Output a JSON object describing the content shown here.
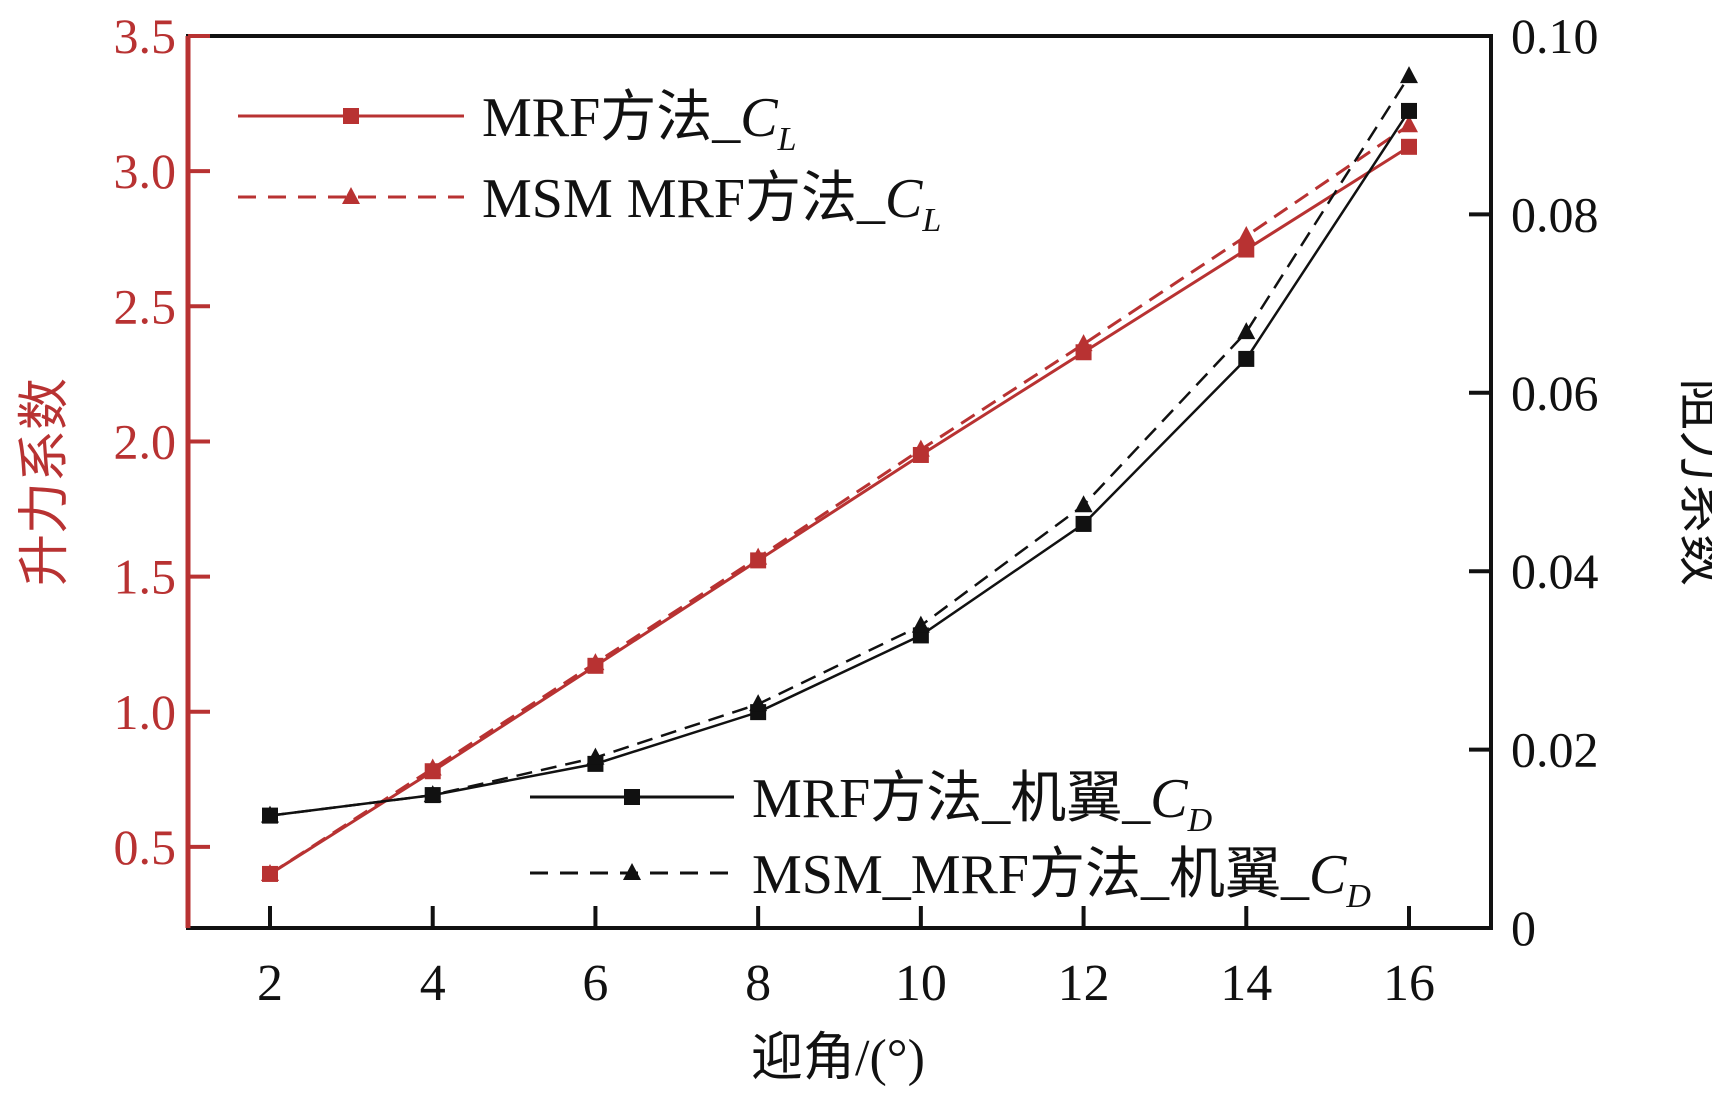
{
  "chart_data": {
    "type": "line",
    "title": "",
    "xlabel": "迎角/(°)",
    "ylabel": "升力系数",
    "y2label": "阻力系数",
    "x": [
      2,
      4,
      6,
      8,
      10,
      12,
      14,
      16
    ],
    "xticks": [
      "2",
      "4",
      "6",
      "8",
      "10",
      "12",
      "14",
      "16"
    ],
    "xlim": [
      1,
      17
    ],
    "ylim": [
      0.2,
      3.5
    ],
    "yticks": [
      "0.5",
      "1.0",
      "1.5",
      "2.0",
      "2.5",
      "3.0",
      "3.5"
    ],
    "y2lim": [
      0,
      0.1
    ],
    "y2ticks": [
      "0",
      "0.02",
      "0.04",
      "0.06",
      "0.08",
      "0.10"
    ],
    "grid": false,
    "colors": {
      "lift": "#b83232",
      "drag": "#111111"
    },
    "series": [
      {
        "name": "MRF方法_",
        "sub": "C",
        "subsub": "L",
        "axis": "left",
        "style": "solid",
        "marker": "square",
        "color": "#b83232",
        "values": [
          0.4,
          0.78,
          1.17,
          1.56,
          1.95,
          2.33,
          2.71,
          3.09
        ]
      },
      {
        "name": "MSM MRF方法_",
        "sub": "C",
        "subsub": "L",
        "axis": "left",
        "style": "dashed",
        "marker": "triangle",
        "color": "#b83232",
        "values": [
          0.4,
          0.79,
          1.18,
          1.57,
          1.97,
          2.36,
          2.76,
          3.17
        ]
      },
      {
        "name": "MRF方法_机翼_",
        "sub": "C",
        "subsub": "D",
        "axis": "right",
        "style": "solid",
        "marker": "square",
        "color": "#111111",
        "values": [
          0.0126,
          0.0149,
          0.0184,
          0.0242,
          0.0328,
          0.0453,
          0.0638,
          0.0916
        ]
      },
      {
        "name": "MSM_MRF方法_机翼_",
        "sub": "C",
        "subsub": "D",
        "axis": "right",
        "style": "dashed",
        "marker": "triangle",
        "color": "#111111",
        "values": [
          0.0126,
          0.0149,
          0.0191,
          0.0251,
          0.0339,
          0.0474,
          0.0668,
          0.0955
        ]
      }
    ]
  }
}
